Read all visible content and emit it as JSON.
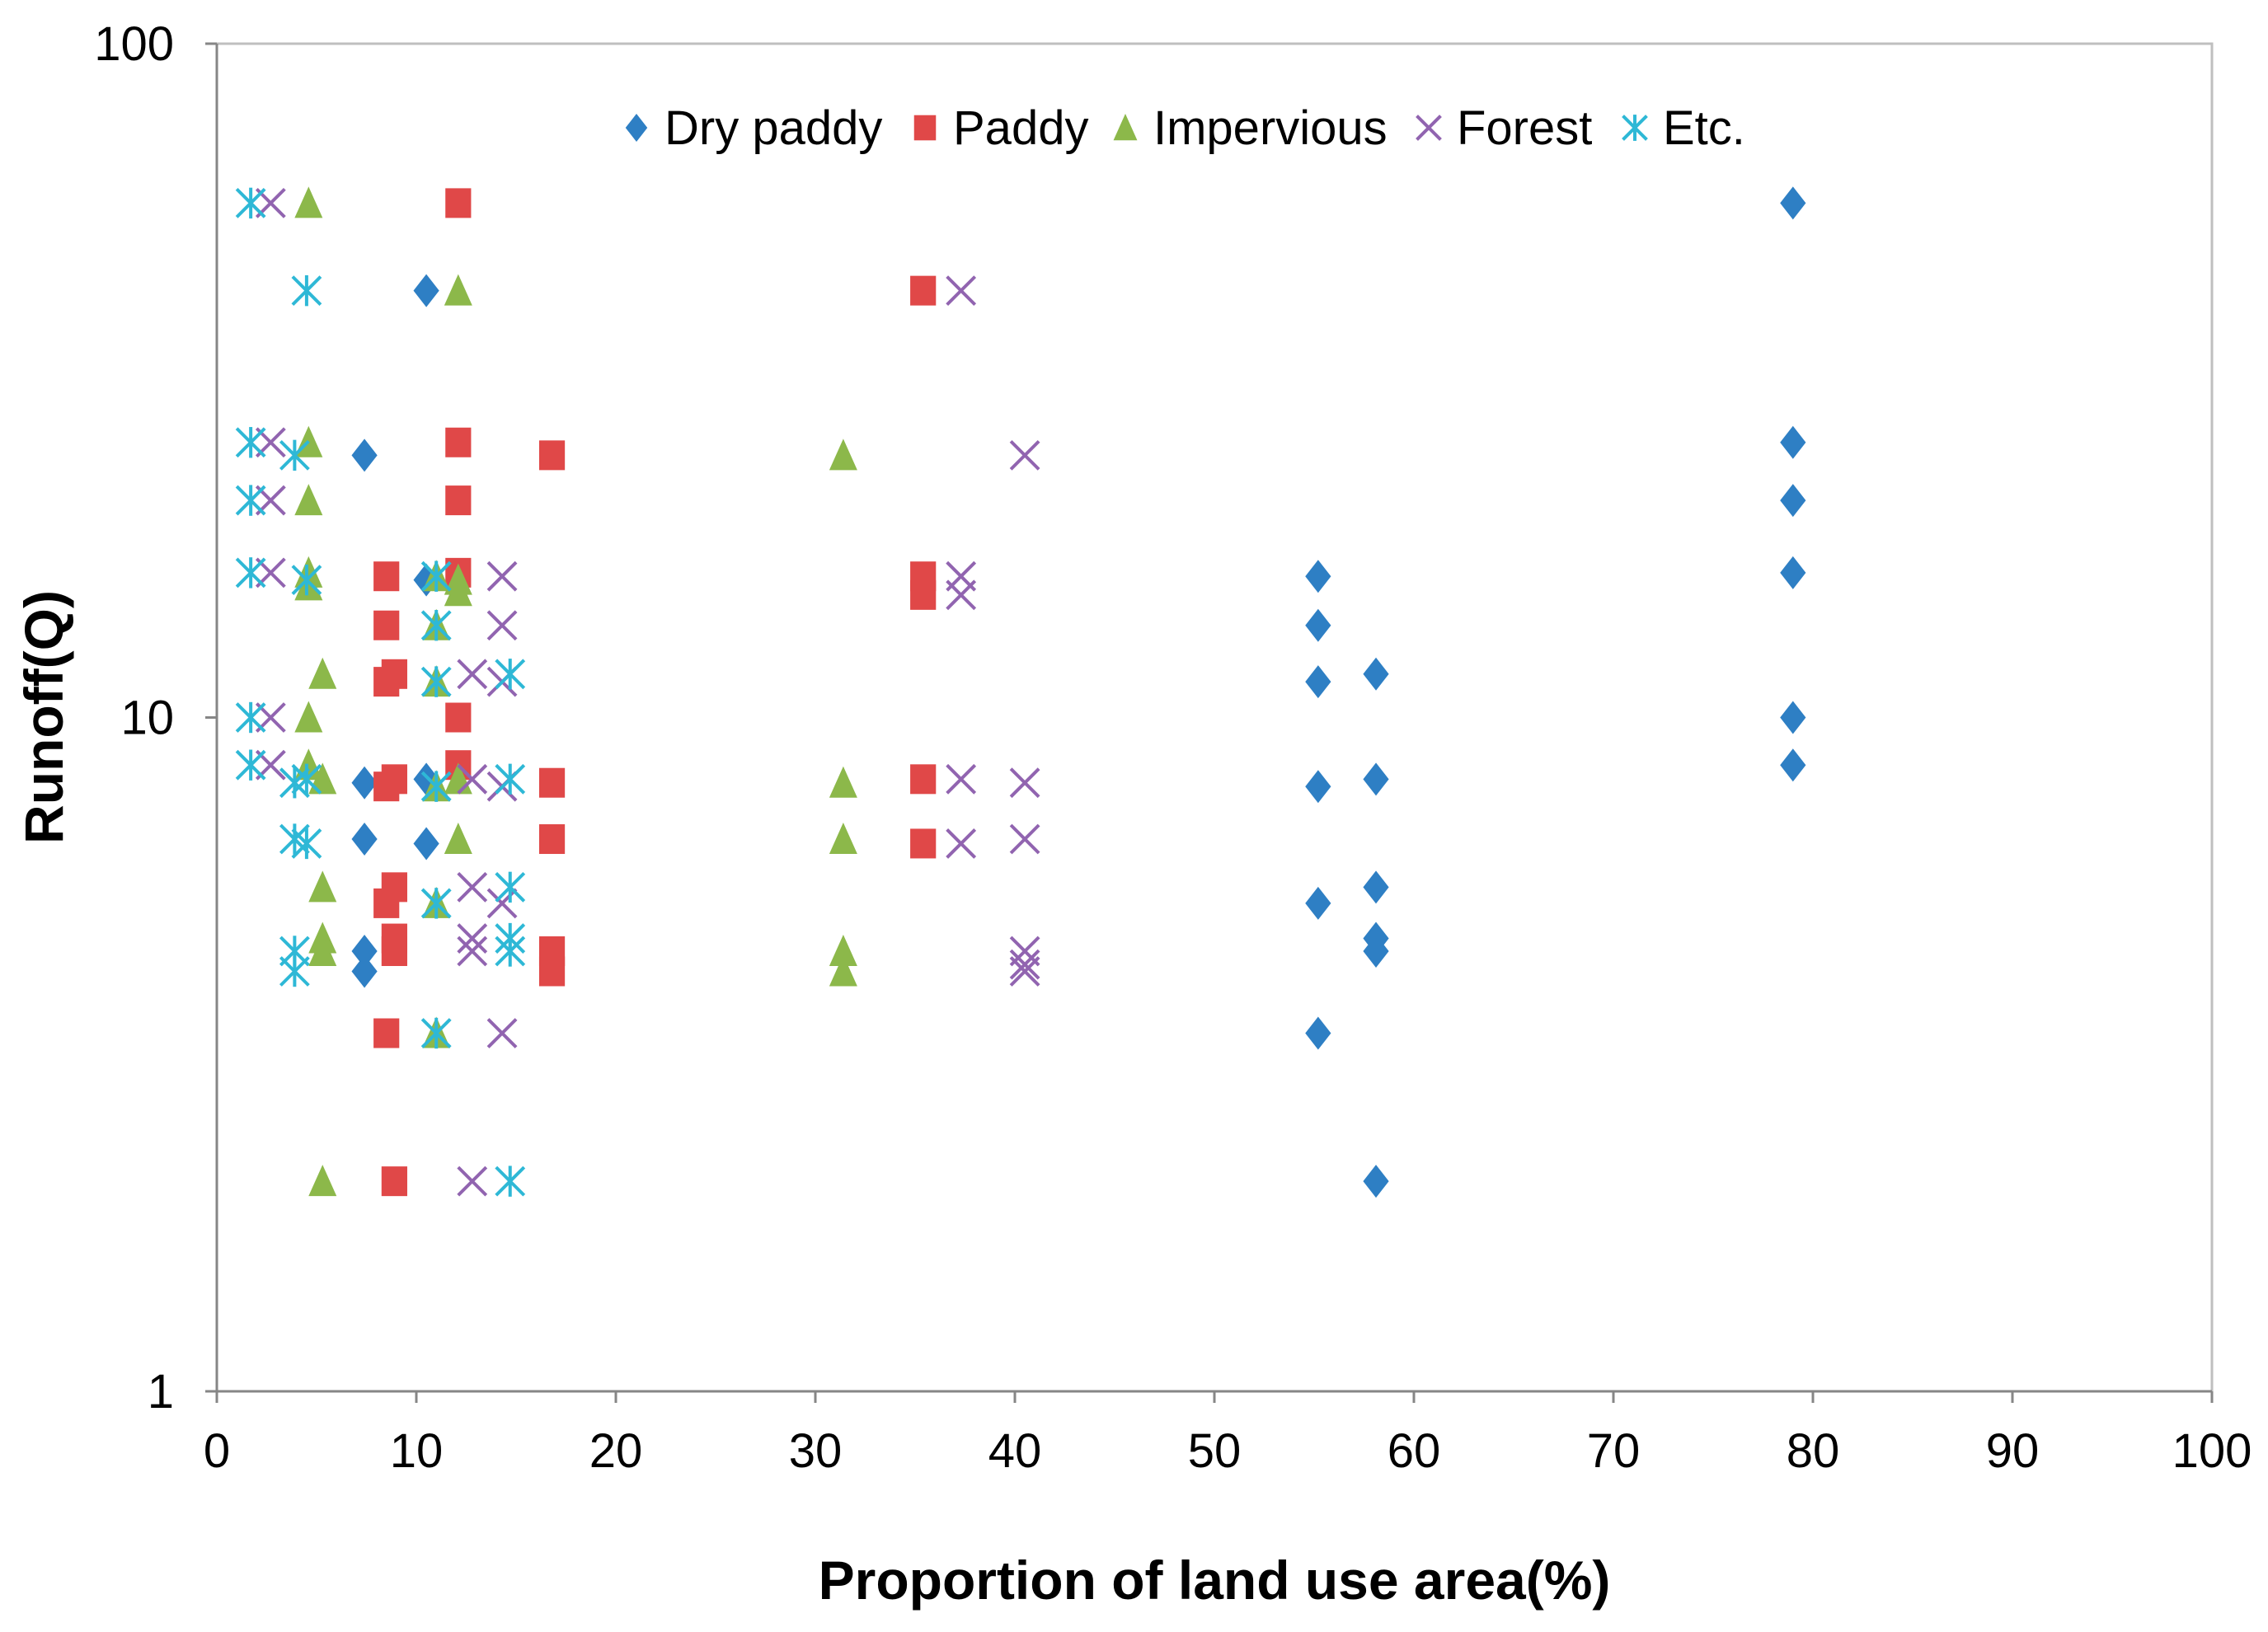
{
  "chart_data": {
    "type": "scatter",
    "title": "",
    "xlabel": "Proportion of land use area(%)",
    "ylabel": "Runoff(Q)",
    "xlim": [
      0,
      100
    ],
    "ylim": [
      1,
      100
    ],
    "yscale": "log",
    "x_ticks": [
      0,
      10,
      20,
      30,
      40,
      50,
      60,
      70,
      80,
      90,
      100
    ],
    "x_tick_labels": [
      "0",
      "10",
      "20",
      "30",
      "40",
      "50",
      "60",
      "70",
      "80",
      "90",
      "100"
    ],
    "y_ticks": [
      1,
      10,
      100
    ],
    "y_tick_labels": [
      "1",
      "10",
      "100"
    ],
    "grid": false,
    "legend_position": "top-center",
    "series": [
      {
        "name": "Dry paddy",
        "marker": "diamond",
        "color": "#2e7fc4",
        "points": [
          [
            10.5,
            43
          ],
          [
            7.4,
            24.5
          ],
          [
            10.5,
            16
          ],
          [
            7.4,
            8
          ],
          [
            10.5,
            8.1
          ],
          [
            7.4,
            6.6
          ],
          [
            10.5,
            6.5
          ],
          [
            7.4,
            4.5
          ],
          [
            7.4,
            4.2
          ],
          [
            55.2,
            16.2
          ],
          [
            55.2,
            13.7
          ],
          [
            55.2,
            11.3
          ],
          [
            55.2,
            7.9
          ],
          [
            55.2,
            5.3
          ],
          [
            55.2,
            3.4
          ],
          [
            58.1,
            11.6
          ],
          [
            58.1,
            8.1
          ],
          [
            58.1,
            5.6
          ],
          [
            58.1,
            4.7
          ],
          [
            58.1,
            4.5
          ],
          [
            58.1,
            2.05
          ],
          [
            79,
            58
          ],
          [
            79,
            25.6
          ],
          [
            79,
            21
          ],
          [
            79,
            16.4
          ],
          [
            79,
            10
          ],
          [
            79,
            8.5
          ]
        ]
      },
      {
        "name": "Paddy",
        "marker": "square",
        "color": "#e04848",
        "points": [
          [
            12.1,
            58
          ],
          [
            12.1,
            25.6
          ],
          [
            16.8,
            24.5
          ],
          [
            12.1,
            21
          ],
          [
            8.5,
            16.2
          ],
          [
            12.1,
            16.4
          ],
          [
            8.5,
            13.7
          ],
          [
            8.5,
            11.3
          ],
          [
            8.9,
            11.6
          ],
          [
            12.1,
            10
          ],
          [
            12.1,
            8.5
          ],
          [
            8.5,
            7.9
          ],
          [
            8.9,
            8.1
          ],
          [
            8.9,
            5.6
          ],
          [
            8.5,
            5.3
          ],
          [
            8.9,
            4.7
          ],
          [
            8.9,
            4.5
          ],
          [
            8.5,
            3.4
          ],
          [
            8.9,
            2.05
          ],
          [
            16.8,
            8
          ],
          [
            16.8,
            6.6
          ],
          [
            16.8,
            4.5
          ],
          [
            16.8,
            4.2
          ],
          [
            35.4,
            43
          ],
          [
            35.4,
            16.2
          ],
          [
            35.4,
            15.2
          ],
          [
            35.4,
            8.1
          ],
          [
            35.4,
            6.5
          ]
        ]
      },
      {
        "name": "Impervious",
        "marker": "triangle",
        "color": "#8cb84a",
        "points": [
          [
            4.6,
            58
          ],
          [
            4.6,
            25.6
          ],
          [
            4.6,
            21
          ],
          [
            4.6,
            16.4
          ],
          [
            4.6,
            15.7
          ],
          [
            4.6,
            10
          ],
          [
            4.6,
            8.5
          ],
          [
            5.3,
            11.6
          ],
          [
            5.3,
            8.1
          ],
          [
            5.3,
            5.6
          ],
          [
            5.3,
            4.7
          ],
          [
            5.3,
            4.5
          ],
          [
            5.3,
            2.05
          ],
          [
            12.1,
            43
          ],
          [
            12.1,
            16
          ],
          [
            12.1,
            15.4
          ],
          [
            12.1,
            8.1
          ],
          [
            12.1,
            6.6
          ],
          [
            11,
            16.2
          ],
          [
            11,
            13.7
          ],
          [
            11,
            11.3
          ],
          [
            11,
            7.9
          ],
          [
            11,
            5.3
          ],
          [
            11,
            3.4
          ],
          [
            31.4,
            24.5
          ],
          [
            31.4,
            8
          ],
          [
            31.4,
            6.6
          ],
          [
            31.4,
            4.5
          ],
          [
            31.4,
            4.2
          ]
        ]
      },
      {
        "name": "Forest",
        "marker": "x",
        "color": "#9164b0",
        "points": [
          [
            2.7,
            58
          ],
          [
            2.7,
            25.6
          ],
          [
            2.7,
            21
          ],
          [
            2.7,
            16.4
          ],
          [
            2.7,
            10
          ],
          [
            2.7,
            8.5
          ],
          [
            12.8,
            11.6
          ],
          [
            12.8,
            8.1
          ],
          [
            12.8,
            5.6
          ],
          [
            12.8,
            4.7
          ],
          [
            12.8,
            4.5
          ],
          [
            14.3,
            16.2
          ],
          [
            14.3,
            13.7
          ],
          [
            14.3,
            11.3
          ],
          [
            14.3,
            7.9
          ],
          [
            14.3,
            5.3
          ],
          [
            14.3,
            3.4
          ],
          [
            12.8,
            2.05
          ],
          [
            37.3,
            43
          ],
          [
            37.3,
            16.2
          ],
          [
            37.3,
            15.2
          ],
          [
            37.3,
            8.1
          ],
          [
            37.3,
            6.5
          ],
          [
            40.5,
            24.5
          ],
          [
            40.5,
            8
          ],
          [
            40.5,
            6.6
          ],
          [
            40.5,
            4.5
          ],
          [
            40.5,
            4.2
          ],
          [
            40.5,
            4.3
          ]
        ]
      },
      {
        "name": "Etc.",
        "marker": "asterisk",
        "color": "#2eb8d6",
        "points": [
          [
            1.7,
            58
          ],
          [
            1.7,
            25.6
          ],
          [
            1.7,
            21
          ],
          [
            1.7,
            16.4
          ],
          [
            1.7,
            10
          ],
          [
            1.7,
            8.5
          ],
          [
            4.5,
            43
          ],
          [
            3.9,
            24.5
          ],
          [
            4.5,
            16
          ],
          [
            4.5,
            8.1
          ],
          [
            3.9,
            8
          ],
          [
            3.9,
            6.6
          ],
          [
            4.5,
            6.5
          ],
          [
            3.9,
            4.5
          ],
          [
            3.9,
            4.2
          ],
          [
            11,
            16.2
          ],
          [
            11,
            13.7
          ],
          [
            11,
            11.3
          ],
          [
            11,
            7.9
          ],
          [
            11,
            5.3
          ],
          [
            11,
            3.4
          ],
          [
            14.7,
            11.6
          ],
          [
            14.7,
            8.1
          ],
          [
            14.7,
            5.6
          ],
          [
            14.7,
            4.7
          ],
          [
            14.7,
            4.5
          ],
          [
            14.7,
            2.05
          ]
        ]
      }
    ]
  }
}
